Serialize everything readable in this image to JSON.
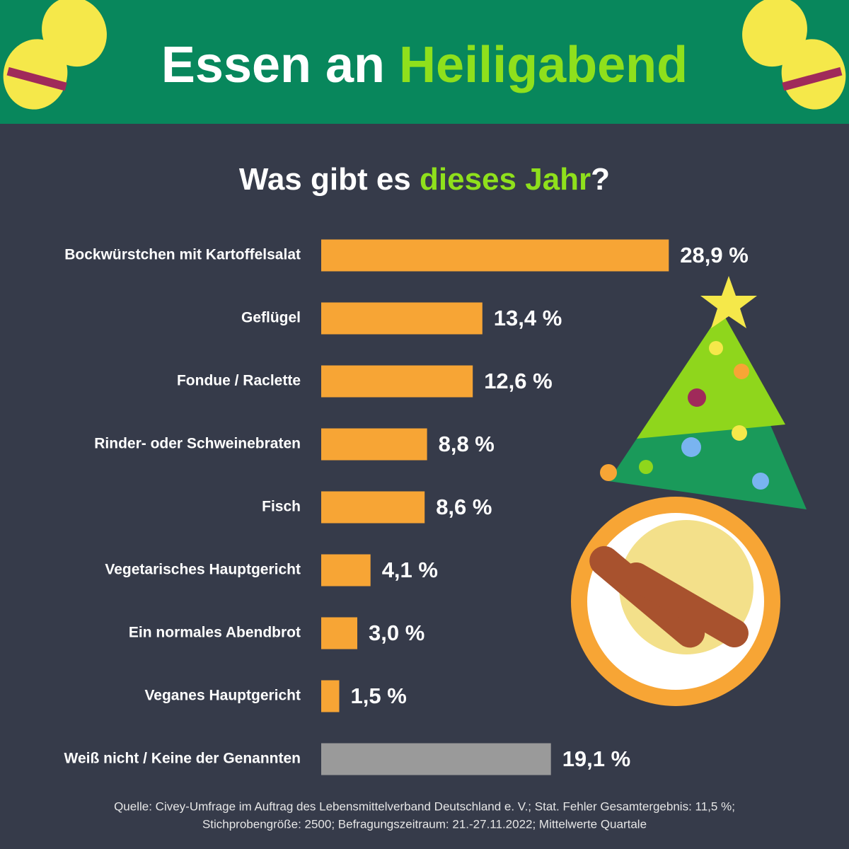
{
  "header": {
    "title_parts": [
      "Essen an ",
      "Heiligabend"
    ]
  },
  "chart_data": {
    "type": "bar",
    "orientation": "horizontal",
    "subtitle_parts": [
      "Was gibt es ",
      "dieses Jahr",
      "?"
    ],
    "categories": [
      "Bockwürstchen mit Kartoffelsalat",
      "Geflügel",
      "Fondue / Raclette",
      "Rinder- oder Schweinebraten",
      "Fisch",
      "Vegetarisches Hauptgericht",
      "Ein normales Abendbrot",
      "Veganes Hauptgericht",
      "Weiß nicht / Keine der Genannten"
    ],
    "values": [
      28.9,
      13.4,
      12.6,
      8.8,
      8.6,
      4.1,
      3.0,
      1.5,
      19.1
    ],
    "value_labels": [
      "28,9 %",
      "13,4 %",
      "12,6 %",
      "8,8 %",
      "8,6 %",
      "4,1 %",
      "3,0 %",
      "1,5 %",
      "19,1 %"
    ],
    "colors": [
      "#f7a535",
      "#f7a535",
      "#f7a535",
      "#f7a535",
      "#f7a535",
      "#f7a535",
      "#f7a535",
      "#f7a535",
      "#9a9a9a"
    ]
  },
  "source": [
    "Quelle: Civey-Umfrage im Auftrag des Lebensmittelverband Deutschland e. V.; Stat. Fehler Gesamtergebnis: 11,5 %;",
    "Stichprobengröße: 2500; Befragungszeitraum: 21.-27.11.2022; Mittelwerte Quartale"
  ]
}
